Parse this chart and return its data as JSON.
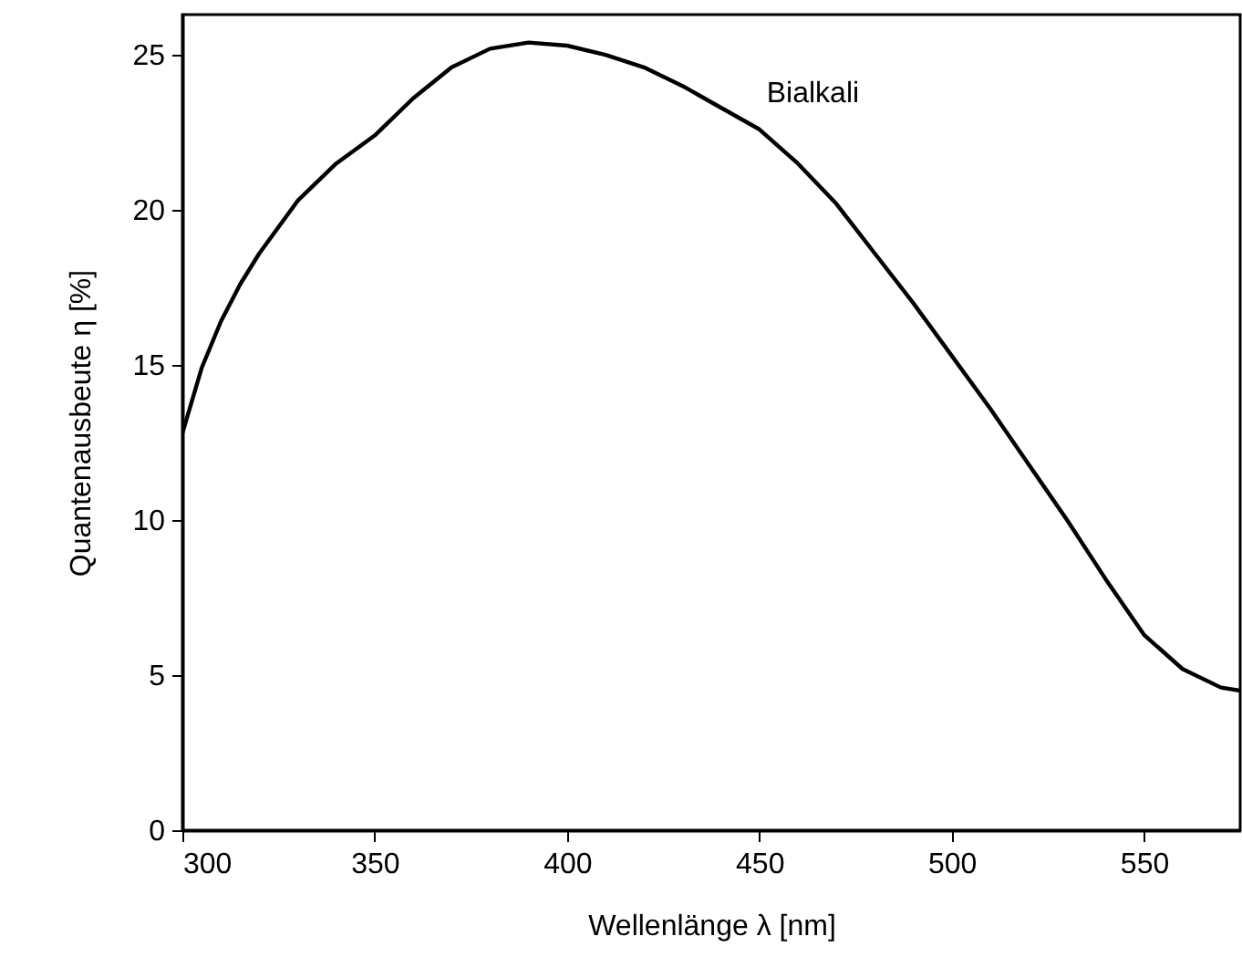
{
  "chart_data": {
    "type": "line",
    "xlabel": "Wellenlänge  λ [nm]",
    "ylabel": "Quantenausbeute    η [%]",
    "xlim": [
      300,
      575
    ],
    "ylim": [
      0,
      26.3
    ],
    "xticks": [
      300,
      350,
      400,
      450,
      500,
      550
    ],
    "yticks": [
      0,
      5,
      10,
      15,
      20,
      25
    ],
    "grid": false,
    "line_style": "solid",
    "marker": "none",
    "series": [
      {
        "name": "Bialkali",
        "color": "#000000",
        "x": [
          300,
          305,
          310,
          315,
          320,
          330,
          340,
          350,
          360,
          370,
          380,
          390,
          400,
          410,
          420,
          430,
          440,
          450,
          460,
          470,
          480,
          490,
          500,
          510,
          520,
          530,
          540,
          550,
          560,
          570,
          575
        ],
        "values": [
          12.8,
          14.9,
          16.4,
          17.6,
          18.6,
          20.3,
          21.5,
          22.4,
          23.6,
          24.6,
          25.2,
          25.4,
          25.3,
          25.0,
          24.6,
          24.0,
          23.3,
          22.6,
          21.5,
          20.2,
          18.6,
          17.0,
          15.3,
          13.6,
          11.8,
          10.0,
          8.1,
          6.3,
          5.2,
          4.6,
          4.5
        ]
      }
    ]
  }
}
